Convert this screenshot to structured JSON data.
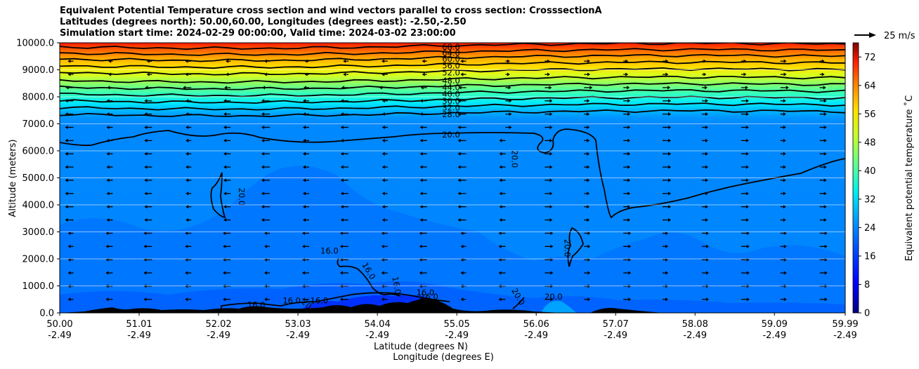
{
  "chart_data": {
    "type": "filled-contour cross section with wind vectors",
    "title": [
      "Equivalent Potential Temperature cross section and wind vectors parallel to cross section: CrosssectionA",
      "Latitudes (degrees north): 50.00,60.00, Longitudes (degrees east): -2.50,-2.50",
      "Simulation start time: 2024-02-29 00:00:00, Valid time: 2024-03-02 23:00:00"
    ],
    "ylabel": "Altitude (meters)",
    "xlabel": "Latitude (degrees N)",
    "xlabel2": "Longitude (degrees E)",
    "ylim": [
      0,
      10000
    ],
    "xlim": [
      50.0,
      59.99
    ],
    "yticks": [
      "0.0",
      "1000.0",
      "2000.0",
      "3000.0",
      "4000.0",
      "5000.0",
      "6000.0",
      "7000.0",
      "8000.0",
      "9000.0",
      "10000.0"
    ],
    "xticks": [
      {
        "lat": "50.00",
        "lon": "-2.49"
      },
      {
        "lat": "51.01",
        "lon": "-2.49"
      },
      {
        "lat": "52.02",
        "lon": "-2.49"
      },
      {
        "lat": "53.03",
        "lon": "-2.49"
      },
      {
        "lat": "54.04",
        "lon": "-2.49"
      },
      {
        "lat": "55.05",
        "lon": "-2.49"
      },
      {
        "lat": "56.06",
        "lon": "-2.49"
      },
      {
        "lat": "57.07",
        "lon": "-2.49"
      },
      {
        "lat": "58.08",
        "lon": "-2.49"
      },
      {
        "lat": "59.09",
        "lon": "-2.49"
      },
      {
        "lat": "59.99",
        "lon": "-2.49"
      }
    ],
    "colorbar": {
      "label": "Equivalent potential temperature ˚C",
      "range": [
        0,
        76
      ],
      "ticks": [
        "0",
        "8",
        "16",
        "24",
        "32",
        "40",
        "48",
        "56",
        "64",
        "72"
      ]
    },
    "quiver_key": "25 m/s",
    "contour_levels_upper": [
      {
        "label": "20.0",
        "alt": 6600
      },
      {
        "label": "28.0",
        "alt": 7350
      },
      {
        "label": "32.0",
        "alt": 7600
      },
      {
        "label": "36.0",
        "alt": 7850
      },
      {
        "label": "40.0",
        "alt": 8100
      },
      {
        "label": "44.0",
        "alt": 8350
      },
      {
        "label": "48.0",
        "alt": 8600
      },
      {
        "label": "52.0",
        "alt": 8900
      },
      {
        "label": "56.0",
        "alt": 9150
      },
      {
        "label": "60.0",
        "alt": 9400
      },
      {
        "label": "64.0",
        "alt": 9620
      },
      {
        "label": "68.0",
        "alt": 9850
      }
    ],
    "contour_labels_other": [
      {
        "label": "20.0",
        "lat": 52.28,
        "alt": 4300,
        "rot": 90
      },
      {
        "label": "20.0",
        "lat": 55.75,
        "alt": 5700,
        "rot": 90
      },
      {
        "label": "20.0",
        "lat": 56.42,
        "alt": 2400,
        "rot": 90
      },
      {
        "label": "20.0",
        "lat": 56.28,
        "alt": 500,
        "rot": 0
      },
      {
        "label": "16.0",
        "lat": 53.43,
        "alt": 2200,
        "rot": 0
      },
      {
        "label": "16.0",
        "lat": 53.9,
        "alt": 1500,
        "rot": 60
      },
      {
        "label": "16.0",
        "lat": 54.25,
        "alt": 1000,
        "rot": 80
      },
      {
        "label": "16.0",
        "lat": 52.95,
        "alt": 350,
        "rot": 0
      },
      {
        "label": "16.0",
        "lat": 53.3,
        "alt": 350,
        "rot": 0
      },
      {
        "label": "16.0",
        "lat": 54.65,
        "alt": 650,
        "rot": 0
      },
      {
        "label": "16.0",
        "lat": 52.5,
        "alt": 200,
        "rot": 0
      },
      {
        "label": "16.0",
        "lat": 54.7,
        "alt": 500,
        "rot": 0
      },
      {
        "label": "20.0",
        "lat": 53.15,
        "alt": 150,
        "rot": 45
      },
      {
        "label": "20.0",
        "lat": 55.8,
        "alt": 550,
        "rot": 60
      }
    ],
    "colors": {
      "background_mid": "#0080ff",
      "lower_band": "#0066ff",
      "upper_top": "#ff2000",
      "terrain": "#000000",
      "vector": "#000000"
    }
  }
}
